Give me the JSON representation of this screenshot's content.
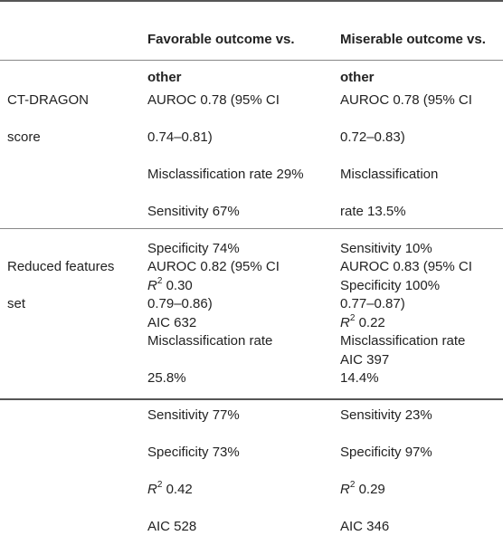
{
  "header": {
    "col0": "",
    "col1": [
      "Favorable outcome vs.",
      "other"
    ],
    "col2": [
      "Miserable outcome vs.",
      "other"
    ]
  },
  "rows": [
    {
      "label": [
        "CT-DRAGON",
        "score"
      ],
      "favorable": {
        "lines": [
          "AUROC 0.78 (95% CI",
          "0.74–0.81)",
          "Misclassification rate 29%",
          "Sensitivity 67%",
          "Specificity 74%"
        ],
        "r2_value": "0.30",
        "aic": "AIC 632"
      },
      "miserable": {
        "lines": [
          "AUROC 0.78 (95% CI",
          "0.72–0.83)",
          "Misclassification",
          "rate 13.5%",
          "Sensitivity 10%",
          "Specificity 100%"
        ],
        "r2_value": "0.22",
        "aic": "AIC 397"
      }
    },
    {
      "label": [
        "Reduced features",
        "set"
      ],
      "favorable": {
        "lines": [
          "AUROC 0.82 (95% CI",
          "0.79–0.86)",
          "Misclassification rate",
          "25.8%",
          "Sensitivity 77%",
          "Specificity 73%"
        ],
        "r2_value": "0.42",
        "aic": "AIC 528"
      },
      "miserable": {
        "lines": [
          "AUROC 0.83 (95% CI",
          "0.77–0.87)",
          "Misclassification rate",
          "14.4%",
          "Sensitivity 23%",
          "Specificity 97%"
        ],
        "r2_value": "0.29",
        "aic": "AIC 346"
      }
    }
  ],
  "r2_label": "R",
  "r2_sup": "2"
}
